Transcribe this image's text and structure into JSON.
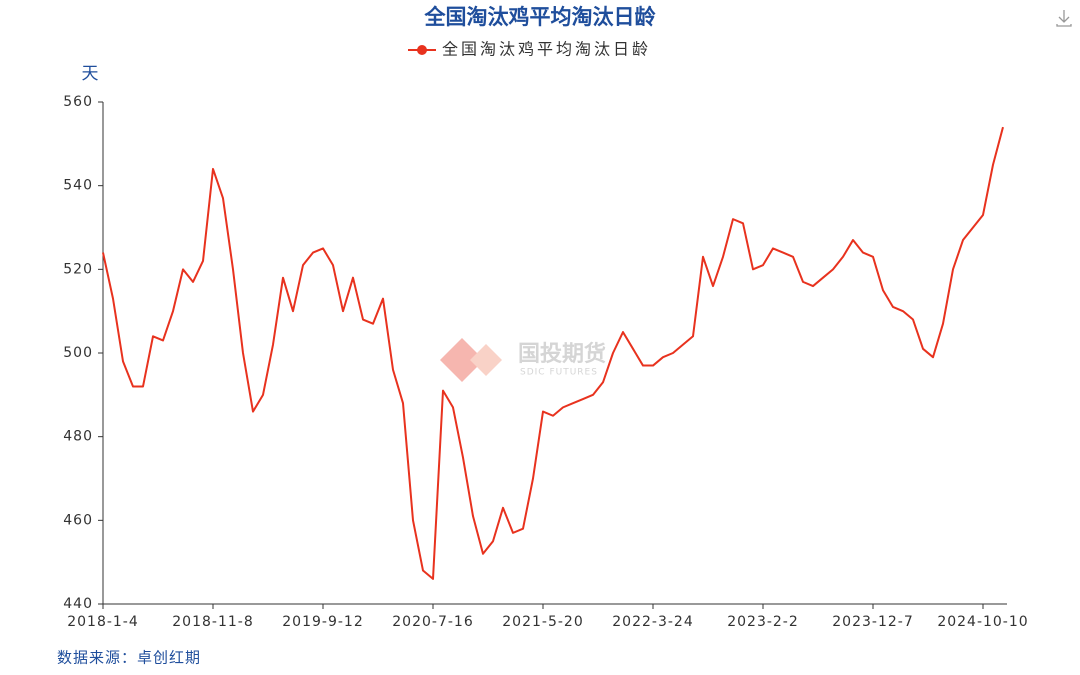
{
  "chart_data": {
    "type": "line",
    "title": "全国淘汰鸡平均淘汰日龄",
    "y_axis_label": "天",
    "source": "数据来源：卓创红期",
    "watermark": {
      "name": "国投期货",
      "subtitle": "SDIC FUTURES"
    },
    "categories": [
      "2018-1-4",
      null,
      null,
      null,
      null,
      null,
      null,
      null,
      null,
      null,
      null,
      "2018-11-8",
      null,
      null,
      null,
      null,
      null,
      null,
      null,
      null,
      null,
      null,
      "2019-9-12",
      null,
      null,
      null,
      null,
      null,
      null,
      null,
      null,
      null,
      null,
      "2020-7-16",
      null,
      null,
      null,
      null,
      null,
      null,
      null,
      null,
      null,
      null,
      "2021-5-20",
      null,
      null,
      null,
      null,
      null,
      null,
      null,
      null,
      null,
      null,
      "2022-3-24",
      null,
      null,
      null,
      null,
      null,
      null,
      null,
      null,
      null,
      null,
      "2023-2-2",
      null,
      null,
      null,
      null,
      null,
      null,
      null,
      null,
      null,
      null,
      "2023-12-7",
      null,
      null,
      null,
      null,
      null,
      null,
      null,
      null,
      null,
      null,
      "2024-10-10",
      null,
      null
    ],
    "series": [
      {
        "name": "全国淘汰鸡平均淘汰日龄",
        "color": "#e8321e",
        "values": [
          524,
          513,
          498,
          492,
          492,
          504,
          503,
          510,
          520,
          517,
          522,
          544,
          537,
          520,
          500,
          486,
          490,
          502,
          518,
          510,
          521,
          524,
          525,
          521,
          510,
          518,
          508,
          507,
          513,
          496,
          488,
          460,
          448,
          446,
          491,
          487,
          475,
          461,
          452,
          455,
          463,
          457,
          458,
          470,
          486,
          485,
          487,
          488,
          489,
          490,
          493,
          500,
          505,
          501,
          497,
          497,
          499,
          500,
          502,
          504,
          523,
          516,
          523,
          532,
          531,
          520,
          521,
          525,
          524,
          523,
          517,
          516,
          518,
          520,
          523,
          527,
          524,
          523,
          515,
          511,
          510,
          508,
          501,
          499,
          507,
          520,
          527,
          530,
          533,
          545,
          554
        ]
      }
    ],
    "ylim": [
      440,
      560
    ],
    "yticks": [
      440,
      460,
      480,
      500,
      520,
      540,
      560
    ],
    "grid": false
  }
}
